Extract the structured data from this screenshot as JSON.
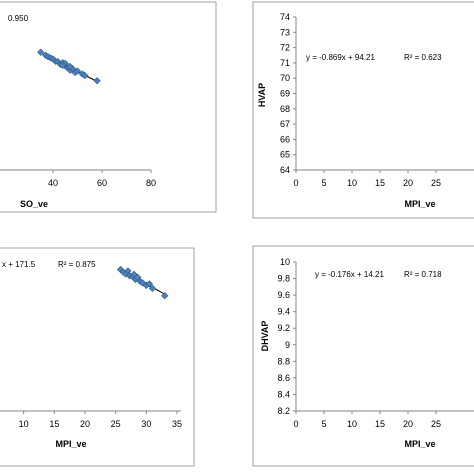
{
  "chart_data": [
    {
      "type": "scatter",
      "xlabel": "SO_ve",
      "ylabel": "",
      "xticks": [
        "40",
        "60",
        "80"
      ],
      "yticks": [],
      "xlim": [
        20,
        80
      ],
      "ylim": [
        60,
        100
      ],
      "annotation": "0.950",
      "series": [
        {
          "points": [
            [
              35,
              91.4
            ],
            [
              37,
              90.6
            ],
            [
              38,
              90.2
            ],
            [
              39,
              89.9
            ],
            [
              40,
              89.6
            ],
            [
              41,
              89.0
            ],
            [
              42,
              88.9
            ],
            [
              43,
              88.2
            ],
            [
              44,
              88.6
            ],
            [
              45,
              87.8
            ],
            [
              46,
              87.2
            ],
            [
              47,
              86.6
            ],
            [
              48,
              87.0
            ],
            [
              49,
              86.0
            ],
            [
              50,
              86.4
            ],
            [
              52,
              85.6
            ],
            [
              53,
              85.2
            ],
            [
              58,
              83.8
            ],
            [
              45,
              88.4
            ],
            [
              44,
              87.9
            ],
            [
              47,
              87.6
            ]
          ],
          "trendline": [
            [
              36,
              91.0
            ],
            [
              58,
              83.6
            ]
          ]
        }
      ]
    },
    {
      "type": "scatter",
      "xlabel": "MPI_ve",
      "ylabel": "HVAP",
      "xticks": [
        "0",
        "5",
        "10",
        "15",
        "20",
        "25"
      ],
      "yticks": [
        "64",
        "65",
        "66",
        "67",
        "68",
        "69",
        "70",
        "71",
        "72",
        "73",
        "74"
      ],
      "xlim": [
        0,
        25
      ],
      "ylim": [
        64,
        74
      ],
      "equation": "y = -0.869x + 94.21",
      "r2": "R² = 0.623",
      "series": []
    },
    {
      "type": "scatter",
      "xlabel": "MPI_ve",
      "ylabel": "",
      "xticks": [
        "10",
        "15",
        "20",
        "25",
        "30",
        "35"
      ],
      "yticks": [],
      "xlim": [
        5,
        35
      ],
      "ylim": [
        120,
        150
      ],
      "equation": "x + 171.5",
      "r2": "R² = 0.875",
      "series": [
        {
          "points": [
            [
              25.8,
              148.5
            ],
            [
              26.2,
              148.0
            ],
            [
              26.6,
              147.6
            ],
            [
              27.0,
              148.2
            ],
            [
              27.3,
              147.2
            ],
            [
              27.8,
              147.0
            ],
            [
              28.2,
              146.5
            ],
            [
              28.6,
              146.9
            ],
            [
              29.0,
              146.1
            ],
            [
              29.4,
              145.8
            ],
            [
              30.0,
              145.3
            ],
            [
              30.5,
              145.6
            ],
            [
              31.0,
              144.7
            ],
            [
              33.0,
              143.2
            ],
            [
              28.0,
              147.5
            ]
          ],
          "trendline": [
            [
              25.5,
              148.6
            ],
            [
              33.2,
              143.4
            ]
          ]
        }
      ]
    },
    {
      "type": "scatter",
      "xlabel": "MPI_ve",
      "ylabel": "DHVAP",
      "xticks": [
        "0",
        "5",
        "10",
        "15",
        "20",
        "25"
      ],
      "yticks": [
        "8.2",
        "8.4",
        "8.6",
        "8.8",
        "9",
        "9.2",
        "9.4",
        "9.6",
        "9.8",
        "10"
      ],
      "xlim": [
        0,
        25
      ],
      "ylim": [
        8.2,
        10
      ],
      "equation": "y = -0.176x + 14.21",
      "r2": "R² = 0.718",
      "series": []
    }
  ]
}
